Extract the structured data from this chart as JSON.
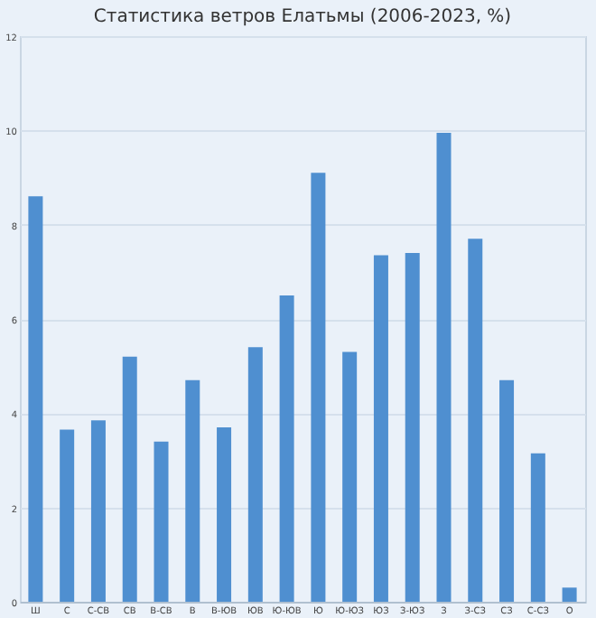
{
  "chart_data": {
    "type": "bar",
    "title": "Статистика ветров Елатьмы (2006-2023, %)",
    "categories": [
      "Ш",
      "С",
      "С-СВ",
      "СВ",
      "В-СВ",
      "В",
      "В-ЮВ",
      "ЮВ",
      "Ю-ЮВ",
      "Ю",
      "Ю-ЮЗ",
      "ЮЗ",
      "З-ЮЗ",
      "З",
      "З-СЗ",
      "СЗ",
      "С-СЗ",
      "О"
    ],
    "values": [
      8.6,
      3.65,
      3.85,
      5.2,
      3.4,
      4.7,
      3.7,
      5.4,
      6.5,
      9.1,
      5.3,
      7.35,
      7.4,
      9.95,
      7.7,
      4.7,
      3.15,
      0.3
    ],
    "color": "#4f8fd0",
    "ylim": [
      0,
      12
    ],
    "yticks": [
      0,
      2,
      4,
      6,
      8,
      10,
      12
    ],
    "grid": "y"
  }
}
